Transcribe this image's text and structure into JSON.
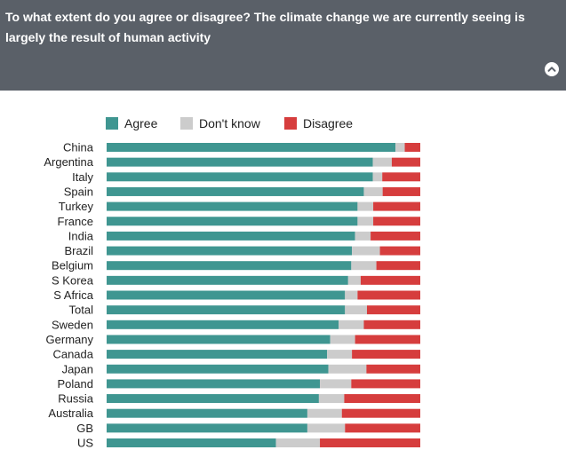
{
  "header": {
    "title": "To what extent do you agree or disagree? The climate change we are currently seeing is largely the result of human activity"
  },
  "icons": {
    "collapse": "chevron-up-icon"
  },
  "colors": {
    "header_bg": "#5a6068",
    "agree": "#3f9691",
    "dont_know": "#cccccc",
    "disagree": "#d63d3d"
  },
  "chart_data": {
    "type": "bar",
    "orientation": "horizontal",
    "stacked": true,
    "normalized": true,
    "legend": "top",
    "categories": [
      "China",
      "Argentina",
      "Italy",
      "Spain",
      "Turkey",
      "France",
      "India",
      "Brazil",
      "Belgium",
      "S Korea",
      "S Africa",
      "Total",
      "Sweden",
      "Germany",
      "Canada",
      "Japan",
      "Poland",
      "Russia",
      "Australia",
      "GB",
      "US"
    ],
    "series": [
      {
        "name": "Agree",
        "color": "#3f9691",
        "values": [
          93,
          84,
          84,
          82,
          80,
          80,
          80,
          79,
          78,
          77,
          76,
          76,
          74,
          72,
          71,
          70,
          68,
          67,
          64,
          64,
          54
        ]
      },
      {
        "name": "Don't know",
        "color": "#cccccc",
        "values": [
          3,
          6,
          3,
          6,
          5,
          5,
          5,
          9,
          8,
          4,
          4,
          7,
          8,
          8,
          8,
          12,
          10,
          8,
          11,
          12,
          14
        ]
      },
      {
        "name": "Disagree",
        "color": "#d63d3d",
        "values": [
          5,
          9,
          12,
          12,
          15,
          15,
          16,
          13,
          14,
          19,
          20,
          17,
          18,
          21,
          22,
          17,
          22,
          24,
          25,
          24,
          32
        ]
      }
    ]
  }
}
